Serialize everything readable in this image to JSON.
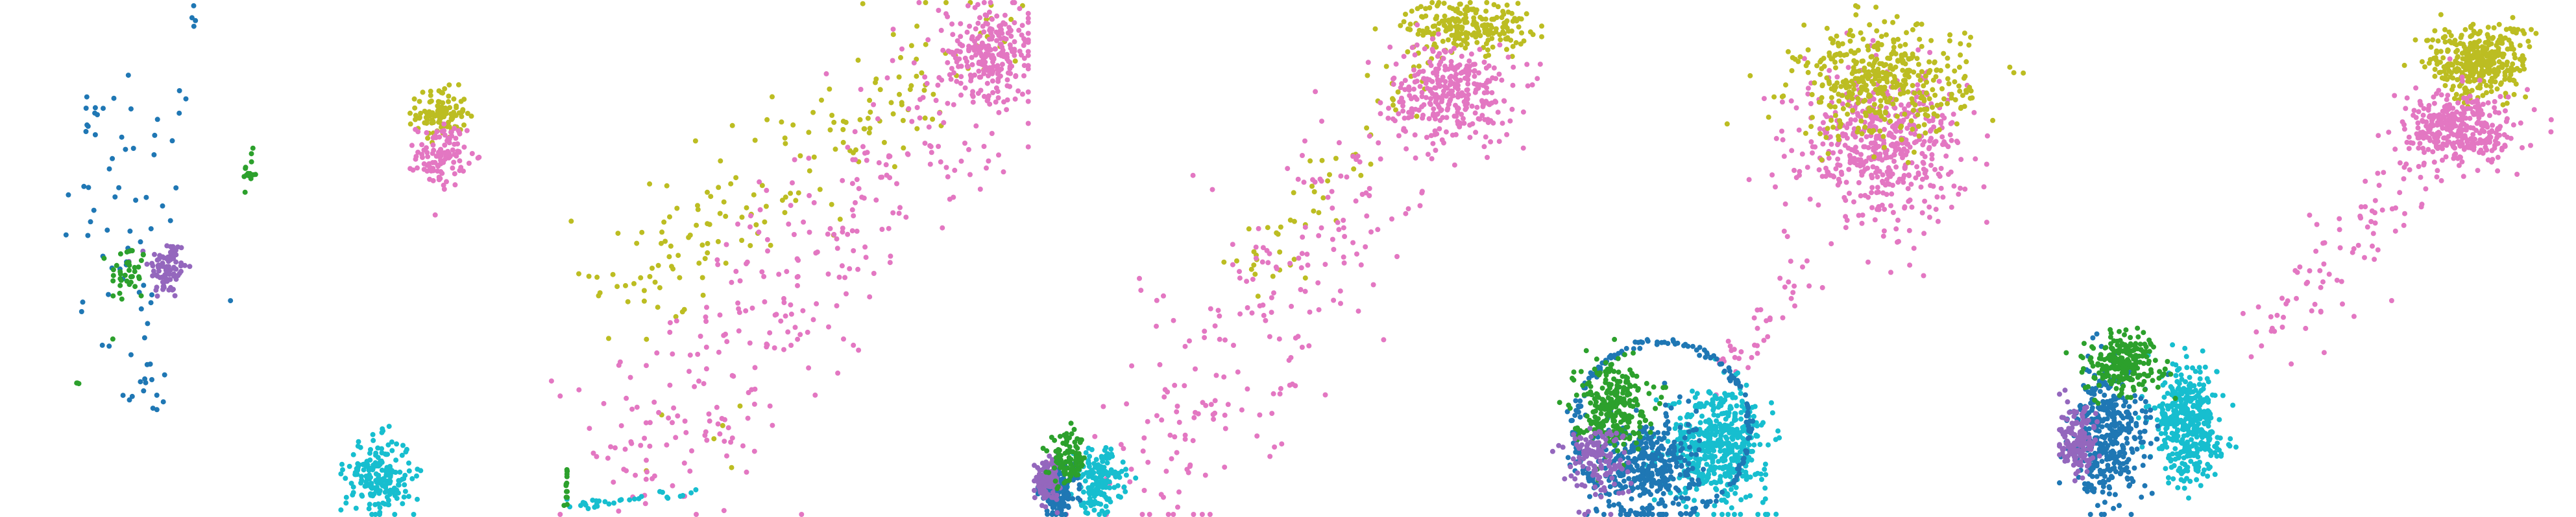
{
  "figure": {
    "description_text": ""
  },
  "colors": {
    "blue": "#1f77b4",
    "green": "#2ca02c",
    "purple": "#9467bd",
    "pink": "#e377c2",
    "olive": "#bcbd22",
    "cyan": "#17becf"
  },
  "chart_data": [
    {
      "type": "scatter",
      "panel": 1,
      "title": "",
      "xlabel": "",
      "ylabel": "",
      "xlim": [
        0,
        1
      ],
      "ylim": [
        0,
        1
      ],
      "grid": false,
      "legend": "none",
      "series": [
        {
          "name": "blue",
          "color": "blue",
          "clusters": [
            {
              "shape": "blob",
              "center": [
                0.5,
                0.55
              ],
              "spread": [
                0.22,
                0.3
              ],
              "n": 60
            },
            {
              "shape": "blob",
              "center": [
                0.35,
                0.78
              ],
              "spread": [
                0.05,
                0.04
              ],
              "n": 8
            },
            {
              "shape": "blob",
              "center": [
                0.55,
                0.25
              ],
              "spread": [
                0.08,
                0.06
              ],
              "n": 12
            },
            {
              "shape": "blob",
              "center": [
                0.72,
                0.97
              ],
              "spread": [
                0.02,
                0.02
              ],
              "n": 4
            }
          ]
        },
        {
          "name": "purple",
          "color": "purple",
          "clusters": [
            {
              "shape": "blob",
              "center": [
                0.63,
                0.48
              ],
              "spread": [
                0.06,
                0.05
              ],
              "n": 90
            }
          ]
        },
        {
          "name": "green",
          "color": "green",
          "clusters": [
            {
              "shape": "blob",
              "center": [
                0.48,
                0.47
              ],
              "spread": [
                0.06,
                0.05
              ],
              "n": 40
            },
            {
              "shape": "blob",
              "center": [
                0.94,
                0.67
              ],
              "spread": [
                0.02,
                0.03
              ],
              "n": 14
            },
            {
              "shape": "blob",
              "center": [
                0.29,
                0.26
              ],
              "spread": [
                0.01,
                0.01
              ],
              "n": 3
            }
          ]
        }
      ]
    },
    {
      "type": "scatter",
      "panel": 2,
      "title": "",
      "xlabel": "",
      "ylabel": "",
      "xlim": [
        0,
        1
      ],
      "ylim": [
        0,
        1
      ],
      "grid": false,
      "legend": "none",
      "series": [
        {
          "name": "olive",
          "color": "olive",
          "clusters": [
            {
              "shape": "blob",
              "center": [
                0.15,
                0.78
              ],
              "spread": [
                0.03,
                0.04
              ],
              "n": 110
            },
            {
              "shape": "band",
              "from": [
                0.38,
                0.4
              ],
              "to": [
                0.95,
                0.96
              ],
              "width": 0.1,
              "n": 180
            },
            {
              "shape": "blob",
              "center": [
                0.52,
                0.18
              ],
              "spread": [
                0.06,
                0.08
              ],
              "n": 6
            }
          ]
        },
        {
          "name": "pink",
          "color": "pink",
          "clusters": [
            {
              "shape": "blob",
              "center": [
                0.15,
                0.7
              ],
              "spread": [
                0.03,
                0.05
              ],
              "n": 110
            },
            {
              "shape": "band",
              "from": [
                0.4,
                0.05
              ],
              "to": [
                0.98,
                0.95
              ],
              "width": 0.14,
              "n": 340
            },
            {
              "shape": "blob",
              "center": [
                0.94,
                0.9
              ],
              "spread": [
                0.05,
                0.07
              ],
              "n": 220
            }
          ]
        },
        {
          "name": "cyan",
          "color": "cyan",
          "clusters": [
            {
              "shape": "blob",
              "center": [
                0.06,
                0.08
              ],
              "spread": [
                0.04,
                0.06
              ],
              "n": 200
            },
            {
              "shape": "band",
              "from": [
                0.33,
                0.02
              ],
              "to": [
                0.52,
                0.05
              ],
              "width": 0.01,
              "n": 30
            }
          ]
        },
        {
          "name": "green",
          "color": "green",
          "clusters": [
            {
              "shape": "band",
              "from": [
                0.33,
                0.02
              ],
              "to": [
                0.33,
                0.1
              ],
              "width": 0.003,
              "n": 14
            }
          ]
        }
      ]
    },
    {
      "type": "scatter",
      "panel": 3,
      "title": "",
      "xlabel": "",
      "ylabel": "",
      "xlim": [
        0,
        1
      ],
      "ylim": [
        0,
        1
      ],
      "grid": false,
      "legend": "none",
      "series": [
        {
          "name": "olive",
          "color": "olive",
          "clusters": [
            {
              "shape": "blob",
              "center": [
                0.85,
                0.95
              ],
              "spread": [
                0.1,
                0.04
              ],
              "n": 220
            },
            {
              "shape": "band",
              "from": [
                0.4,
                0.45
              ],
              "to": [
                0.78,
                0.9
              ],
              "width": 0.07,
              "n": 60
            }
          ]
        },
        {
          "name": "pink",
          "color": "pink",
          "clusters": [
            {
              "shape": "blob",
              "center": [
                0.82,
                0.82
              ],
              "spread": [
                0.1,
                0.08
              ],
              "n": 320
            },
            {
              "shape": "band",
              "from": [
                0.2,
                0.05
              ],
              "to": [
                0.7,
                0.7
              ],
              "width": 0.18,
              "n": 220
            }
          ]
        },
        {
          "name": "cyan",
          "color": "cyan",
          "clusters": [
            {
              "shape": "blob",
              "center": [
                0.13,
                0.07
              ],
              "spread": [
                0.04,
                0.05
              ],
              "n": 160
            }
          ]
        },
        {
          "name": "blue",
          "color": "blue",
          "clusters": [
            {
              "shape": "blob",
              "center": [
                0.05,
                0.05
              ],
              "spread": [
                0.03,
                0.04
              ],
              "n": 180
            }
          ]
        },
        {
          "name": "purple",
          "color": "purple",
          "clusters": [
            {
              "shape": "blob",
              "center": [
                0.03,
                0.07
              ],
              "spread": [
                0.02,
                0.03
              ],
              "n": 120
            }
          ]
        },
        {
          "name": "green",
          "color": "green",
          "clusters": [
            {
              "shape": "blob",
              "center": [
                0.07,
                0.11
              ],
              "spread": [
                0.03,
                0.04
              ],
              "n": 100
            }
          ]
        }
      ]
    },
    {
      "type": "scatter",
      "panel": 4,
      "title": "",
      "xlabel": "",
      "ylabel": "",
      "xlim": [
        0,
        1
      ],
      "ylim": [
        0,
        1
      ],
      "grid": false,
      "legend": "none",
      "series": [
        {
          "name": "pink",
          "color": "pink",
          "clusters": [
            {
              "shape": "blob",
              "center": [
                0.66,
                0.72
              ],
              "spread": [
                0.13,
                0.12
              ],
              "n": 520
            },
            {
              "shape": "band",
              "from": [
                0.36,
                0.27
              ],
              "to": [
                0.5,
                0.48
              ],
              "width": 0.05,
              "n": 40
            }
          ]
        },
        {
          "name": "olive",
          "color": "olive",
          "clusters": [
            {
              "shape": "blob",
              "center": [
                0.66,
                0.84
              ],
              "spread": [
                0.14,
                0.09
              ],
              "n": 420
            }
          ]
        },
        {
          "name": "cyan",
          "color": "cyan",
          "clusters": [
            {
              "shape": "blob",
              "center": [
                0.34,
                0.14
              ],
              "spread": [
                0.08,
                0.09
              ],
              "n": 500
            }
          ]
        },
        {
          "name": "blue",
          "color": "blue",
          "clusters": [
            {
              "shape": "blob",
              "center": [
                0.2,
                0.1
              ],
              "spread": [
                0.08,
                0.08
              ],
              "n": 380
            },
            {
              "shape": "ring",
              "center": [
                0.23,
                0.17
              ],
              "radius": [
                0.17,
                0.17
              ],
              "n": 200
            }
          ]
        },
        {
          "name": "green",
          "color": "green",
          "clusters": [
            {
              "shape": "blob",
              "center": [
                0.13,
                0.22
              ],
              "spread": [
                0.06,
                0.07
              ],
              "n": 260
            }
          ]
        },
        {
          "name": "purple",
          "color": "purple",
          "clusters": [
            {
              "shape": "blob",
              "center": [
                0.1,
                0.11
              ],
              "spread": [
                0.05,
                0.06
              ],
              "n": 140
            }
          ]
        }
      ]
    },
    {
      "type": "scatter",
      "panel": 5,
      "title": "",
      "xlabel": "",
      "ylabel": "",
      "xlim": [
        0,
        1
      ],
      "ylim": [
        0,
        1
      ],
      "grid": false,
      "legend": "none",
      "series": [
        {
          "name": "olive",
          "color": "olive",
          "clusters": [
            {
              "shape": "blob",
              "center": [
                0.81,
                0.88
              ],
              "spread": [
                0.08,
                0.06
              ],
              "n": 360
            }
          ]
        },
        {
          "name": "pink",
          "color": "pink",
          "clusters": [
            {
              "shape": "blob",
              "center": [
                0.78,
                0.75
              ],
              "spread": [
                0.09,
                0.06
              ],
              "n": 340
            },
            {
              "shape": "band",
              "from": [
                0.4,
                0.35
              ],
              "to": [
                0.72,
                0.7
              ],
              "width": 0.08,
              "n": 90
            }
          ]
        },
        {
          "name": "cyan",
          "color": "cyan",
          "clusters": [
            {
              "shape": "blob",
              "center": [
                0.25,
                0.18
              ],
              "spread": [
                0.05,
                0.09
              ],
              "n": 420
            }
          ]
        },
        {
          "name": "blue",
          "color": "blue",
          "clusters": [
            {
              "shape": "blob",
              "center": [
                0.1,
                0.16
              ],
              "spread": [
                0.06,
                0.1
              ],
              "n": 380
            }
          ]
        },
        {
          "name": "green",
          "color": "green",
          "clusters": [
            {
              "shape": "blob",
              "center": [
                0.13,
                0.3
              ],
              "spread": [
                0.06,
                0.05
              ],
              "n": 220
            }
          ]
        },
        {
          "name": "purple",
          "color": "purple",
          "clusters": [
            {
              "shape": "blob",
              "center": [
                0.04,
                0.15
              ],
              "spread": [
                0.03,
                0.06
              ],
              "n": 150
            }
          ]
        }
      ]
    }
  ]
}
